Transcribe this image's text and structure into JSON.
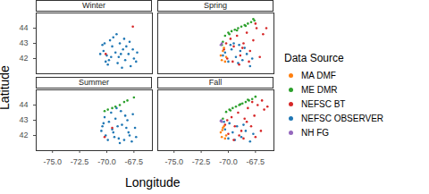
{
  "chart_data": {
    "type": "scatter",
    "x_label": "Longitude",
    "y_label": "Latitude",
    "legend_title": "Data Source",
    "xlim": [
      -76.5,
      -65.8
    ],
    "ylim": [
      41.0,
      45.0
    ],
    "xticks": [
      {
        "value": -75,
        "label": "-75.0"
      },
      {
        "value": -72.5,
        "label": "-72.5"
      },
      {
        "value": -70,
        "label": "-70.0"
      },
      {
        "value": -67.5,
        "label": "-67.5"
      }
    ],
    "yticks": [
      42,
      43,
      44
    ],
    "series": [
      {
        "name": "MA DMF",
        "color": "#ff7f0e"
      },
      {
        "name": "ME DMR",
        "color": "#2ca02c"
      },
      {
        "name": "NEFSC BT",
        "color": "#d62728"
      },
      {
        "name": "NEFSC OBSERVER",
        "color": "#1f77b4"
      },
      {
        "name": "NH FG",
        "color": "#9467bd"
      }
    ],
    "facets": [
      {
        "title": "Winter",
        "series": [
          {
            "name": "NEFSC OBSERVER",
            "x": [
              -70.3,
              -70.0,
              -69.8,
              -69.5,
              -69.2,
              -69.0,
              -68.8,
              -68.5,
              -68.3,
              -68.0,
              -67.8,
              -67.5,
              -67.3,
              -69.7,
              -69.4,
              -70.4,
              -70.6,
              -69.9,
              -68.9,
              -68.2,
              -67.9,
              -69.1,
              -70.2,
              -68.6,
              -67.6,
              -69.6,
              -68.7,
              -70.1,
              -67.2,
              -68.4
            ],
            "y": [
              42.5,
              42.2,
              41.9,
              42.8,
              42.4,
              41.7,
              43.0,
              42.6,
              41.9,
              42.3,
              41.5,
              42.0,
              41.8,
              43.2,
              43.4,
              42.9,
              42.3,
              41.6,
              42.1,
              42.8,
              43.1,
              43.6,
              43.0,
              41.4,
              42.6,
              42.1,
              42.3,
              41.8,
              42.4,
              43.3
            ]
          },
          {
            "name": "NEFSC BT",
            "x": [
              -70.1,
              -67.6
            ],
            "y": [
              42.3,
              44.1
            ]
          }
        ]
      },
      {
        "title": "Spring",
        "series": [
          {
            "name": "NEFSC OBSERVER",
            "x": [
              -70.3,
              -70.0,
              -69.7,
              -69.3,
              -69.0,
              -68.7,
              -68.3,
              -68.0,
              -67.8,
              -70.5,
              -69.5,
              -68.9,
              -69.8,
              -69.1,
              -68.5
            ],
            "y": [
              42.4,
              41.8,
              42.6,
              42.1,
              42.9,
              41.9,
              42.3,
              41.5,
              42.0,
              42.2,
              43.0,
              42.5,
              42.9,
              41.7,
              42.7
            ]
          },
          {
            "name": "NEFSC BT",
            "x": [
              -70.4,
              -70.1,
              -69.8,
              -69.5,
              -69.2,
              -68.9,
              -68.6,
              -68.3,
              -68.0,
              -67.7,
              -67.4,
              -67.1,
              -66.8,
              -69.0,
              -68.1,
              -67.5,
              -66.5,
              -70.2,
              -69.6,
              -68.7
            ],
            "y": [
              42.6,
              42.0,
              43.3,
              42.8,
              43.5,
              42.2,
              43.0,
              43.7,
              42.5,
              43.2,
              44.0,
              42.1,
              43.6,
              41.6,
              41.8,
              44.3,
              44.0,
              43.0,
              41.8,
              42.7
            ]
          },
          {
            "name": "ME DMR",
            "x": [
              -70.6,
              -70.3,
              -70.0,
              -69.7,
              -69.4,
              -69.1,
              -68.8,
              -68.5,
              -68.2,
              -67.9,
              -67.6,
              -70.5,
              -69.9,
              -69.2,
              -68.4,
              -67.7
            ],
            "y": [
              42.9,
              43.5,
              43.7,
              43.8,
              43.9,
              44.0,
              44.1,
              44.2,
              44.3,
              44.4,
              44.5,
              43.1,
              43.6,
              43.85,
              44.15,
              44.6
            ]
          },
          {
            "name": "MA DMF",
            "x": [
              -70.7,
              -70.5,
              -70.3,
              -70.6,
              -70.2,
              -70.4
            ],
            "y": [
              42.2,
              42.5,
              41.8,
              41.9,
              42.1,
              42.7
            ]
          },
          {
            "name": "NH FG",
            "x": [
              -70.7,
              -70.6
            ],
            "y": [
              42.9,
              43.0
            ]
          }
        ]
      },
      {
        "title": "Summer",
        "series": [
          {
            "name": "NEFSC OBSERVER",
            "x": [
              -70.4,
              -70.1,
              -69.8,
              -69.5,
              -69.2,
              -68.9,
              -68.6,
              -68.3,
              -68.0,
              -67.7,
              -67.4,
              -69.6,
              -69.3,
              -70.5,
              -70.2,
              -69.0,
              -68.4,
              -68.1,
              -67.9,
              -69.9,
              -68.7,
              -67.6,
              -70.3,
              -69.4,
              -68.2,
              -67.3,
              -69.1,
              -68.8
            ],
            "y": [
              42.6,
              42.0,
              42.9,
              42.4,
              43.1,
              41.8,
              42.7,
              43.3,
              42.2,
              41.6,
              42.5,
              43.5,
              41.9,
              42.3,
              43.2,
              42.6,
              41.7,
              43.0,
              42.0,
              41.7,
              43.6,
              43.4,
              42.8,
              42.2,
              42.5,
              41.9,
              43.8,
              41.5
            ]
          },
          {
            "name": "ME DMR",
            "x": [
              -70.2,
              -69.5,
              -68.8,
              -68.1,
              -67.5,
              -69.9,
              -69.2,
              -68.4
            ],
            "y": [
              43.6,
              43.8,
              44.0,
              44.3,
              44.5,
              43.7,
              43.9,
              44.2
            ]
          },
          {
            "name": "NEFSC BT",
            "x": [
              -69.5,
              -70.2
            ],
            "y": [
              42.5,
              41.9
            ]
          }
        ]
      },
      {
        "title": "Fall",
        "series": [
          {
            "name": "NEFSC OBSERVER",
            "x": [
              -70.3,
              -70.0,
              -69.6,
              -69.2,
              -68.8,
              -68.4,
              -68.0,
              -67.7,
              -69.9,
              -69.4,
              -68.6,
              -70.4
            ],
            "y": [
              42.4,
              41.8,
              42.2,
              42.6,
              41.9,
              42.3,
              41.6,
              42.1,
              42.8,
              41.7,
              42.7,
              42.9
            ]
          },
          {
            "name": "NEFSC BT",
            "x": [
              -70.3,
              -70.0,
              -69.7,
              -69.4,
              -69.1,
              -68.8,
              -68.5,
              -68.2,
              -67.9,
              -67.6,
              -67.3,
              -67.0,
              -66.7,
              -69.5,
              -68.6,
              -67.8,
              -66.4,
              -70.1,
              -69.0,
              -68.3,
              -67.5,
              -66.9
            ],
            "y": [
              42.7,
              42.1,
              43.2,
              42.6,
              43.5,
              42.3,
              43.1,
              43.8,
              42.6,
              43.3,
              44.0,
              42.3,
              43.7,
              41.7,
              41.8,
              44.2,
              43.9,
              43.0,
              42.0,
              42.9,
              41.9,
              44.3
            ]
          },
          {
            "name": "ME DMR",
            "x": [
              -70.5,
              -70.2,
              -69.9,
              -69.6,
              -69.3,
              -69.0,
              -68.7,
              -68.4,
              -68.1,
              -67.8,
              -67.5,
              -69.8,
              -68.9,
              -68.2
            ],
            "y": [
              43.1,
              43.55,
              43.7,
              43.8,
              43.9,
              44.0,
              44.1,
              44.2,
              44.3,
              44.4,
              44.55,
              43.65,
              44.05,
              44.35
            ]
          },
          {
            "name": "MA DMF",
            "x": [
              -70.7,
              -70.5,
              -70.3,
              -70.6,
              -70.4,
              -70.2,
              -70.55
            ],
            "y": [
              42.2,
              42.5,
              41.8,
              41.9,
              42.6,
              42.0,
              42.35
            ]
          },
          {
            "name": "NH FG",
            "x": [
              -70.7,
              -70.65,
              -70.6
            ],
            "y": [
              42.95,
              43.0,
              42.9
            ]
          }
        ]
      }
    ]
  }
}
